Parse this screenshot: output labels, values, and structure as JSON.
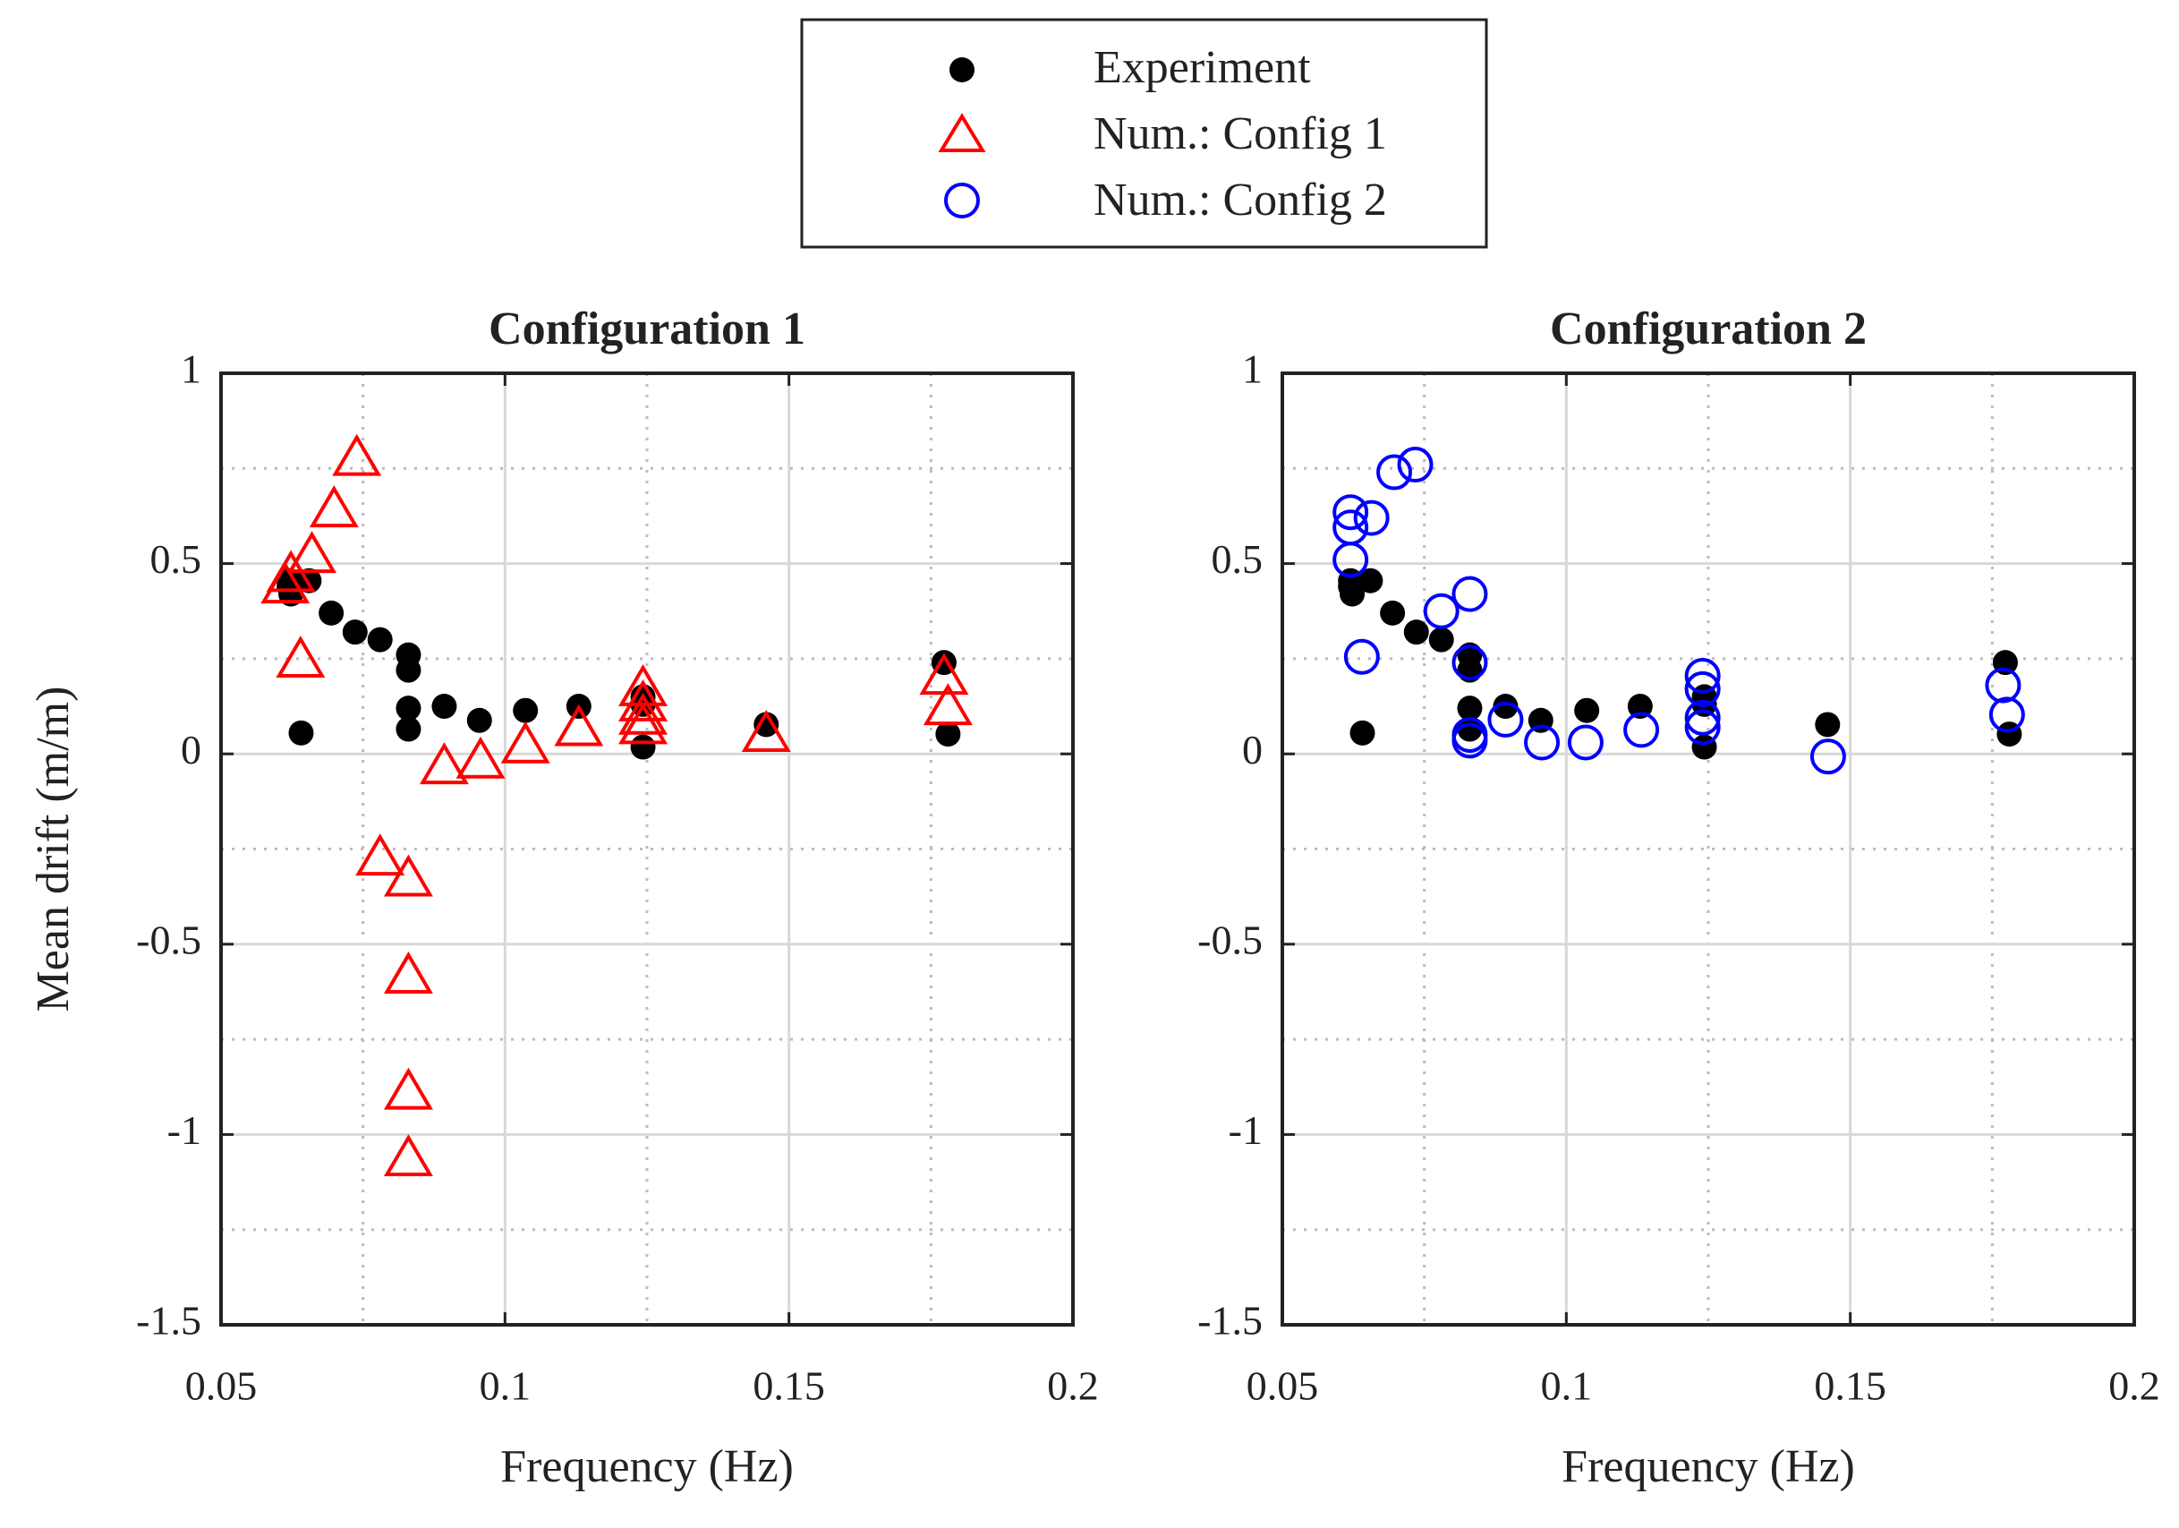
{
  "chart_data": [
    {
      "type": "scatter",
      "title": "Configuration 1",
      "xlabel": "Frequency (Hz)",
      "ylabel": "Mean drift (m/m)",
      "xlim": [
        0.05,
        0.2
      ],
      "xticks": [
        0.05,
        0.1,
        0.15,
        0.2
      ],
      "xminorticks": [
        0.075,
        0.125,
        0.175
      ],
      "ylim": [
        -1.5,
        1
      ],
      "yticks": [
        -1.5,
        -1,
        -0.5,
        0,
        0.5,
        1
      ],
      "yminorticks": [
        -1.25,
        -0.75,
        -0.25,
        0.25,
        0.75
      ],
      "grid": true,
      "series": [
        {
          "name": "Experiment",
          "color": "#000000",
          "marker": "dot",
          "x": [
            0.0623,
            0.062,
            0.062,
            0.0655,
            0.0641,
            0.0694,
            0.0736,
            0.078,
            0.083,
            0.083,
            0.083,
            0.083,
            0.0893,
            0.0955,
            0.1036,
            0.113,
            0.1243,
            0.1243,
            0.1243,
            0.146,
            0.1773,
            0.178
          ],
          "values": [
            0.42,
            0.455,
            0.44,
            0.455,
            0.055,
            0.37,
            0.32,
            0.3,
            0.26,
            0.22,
            0.12,
            0.065,
            0.125,
            0.088,
            0.114,
            0.125,
            0.15,
            0.13,
            0.018,
            0.077,
            0.24,
            0.052
          ]
        },
        {
          "name": "Num.: Config 1",
          "color": "#ff0000",
          "marker": "triangle",
          "x": [
            0.0613,
            0.0623,
            0.066,
            0.064,
            0.0699,
            0.0739,
            0.078,
            0.083,
            0.083,
            0.083,
            0.083,
            0.0893,
            0.0957,
            0.1036,
            0.113,
            0.1243,
            0.1243,
            0.1243,
            0.1243,
            0.146,
            0.1773,
            0.178
          ],
          "values": [
            0.44,
            0.47,
            0.52,
            0.245,
            0.64,
            0.775,
            -0.275,
            -0.33,
            -0.585,
            -0.89,
            -1.065,
            -0.035,
            -0.02,
            0.02,
            0.065,
            0.17,
            0.13,
            0.095,
            0.07,
            0.05,
            0.2,
            0.12
          ]
        }
      ]
    },
    {
      "type": "scatter",
      "title": "Configuration 2",
      "xlabel": "Frequency (Hz)",
      "xlim": [
        0.05,
        0.2
      ],
      "xticks": [
        0.05,
        0.1,
        0.15,
        0.2
      ],
      "xminorticks": [
        0.075,
        0.125,
        0.175
      ],
      "ylim": [
        -1.5,
        1
      ],
      "yticks": [
        -1.5,
        -1,
        -0.5,
        0,
        0.5,
        1
      ],
      "yminorticks": [
        -1.25,
        -0.75,
        -0.25,
        0.25,
        0.75
      ],
      "grid": true,
      "series": [
        {
          "color": "#000000",
          "marker": "dot",
          "x": [
            0.0623,
            0.062,
            0.062,
            0.0655,
            0.0641,
            0.0694,
            0.0736,
            0.078,
            0.083,
            0.083,
            0.083,
            0.083,
            0.0893,
            0.0955,
            0.1036,
            0.113,
            0.1243,
            0.1243,
            0.1243,
            0.146,
            0.1773,
            0.178
          ],
          "values": [
            0.42,
            0.455,
            0.44,
            0.455,
            0.055,
            0.37,
            0.32,
            0.3,
            0.26,
            0.22,
            0.12,
            0.065,
            0.125,
            0.088,
            0.114,
            0.125,
            0.15,
            0.13,
            0.018,
            0.077,
            0.24,
            0.052
          ]
        },
        {
          "name": "Num.: Config 2",
          "color": "#0000ff",
          "marker": "circle",
          "x": [
            0.062,
            0.062,
            0.062,
            0.0657,
            0.064,
            0.0697,
            0.0734,
            0.078,
            0.083,
            0.083,
            0.083,
            0.083,
            0.0893,
            0.0957,
            0.1034,
            0.1132,
            0.124,
            0.124,
            0.124,
            0.124,
            0.1461,
            0.1769,
            0.1776
          ],
          "values": [
            0.635,
            0.595,
            0.51,
            0.62,
            0.255,
            0.74,
            0.76,
            0.375,
            0.42,
            0.24,
            0.05,
            0.035,
            0.09,
            0.03,
            0.03,
            0.063,
            0.205,
            0.17,
            0.095,
            0.07,
            -0.007,
            0.18,
            0.103
          ]
        }
      ]
    }
  ]
}
